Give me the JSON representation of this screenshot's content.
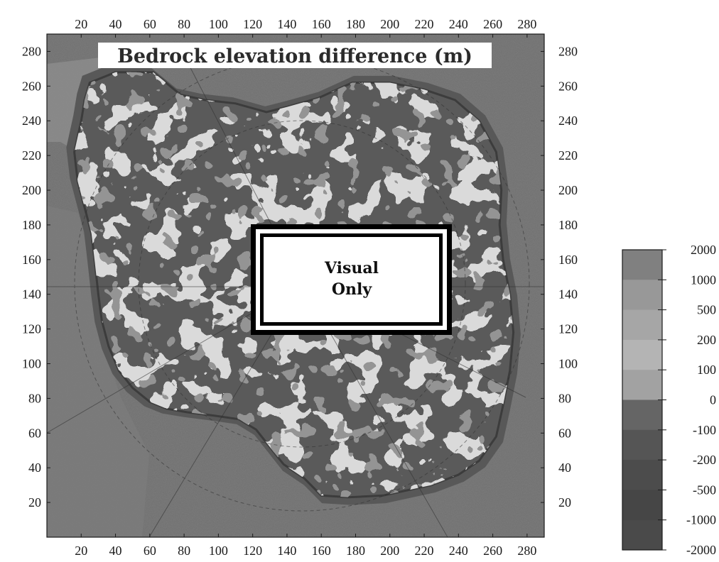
{
  "title": "Bedrock elevation difference (m)",
  "axes": {
    "x_ticks": [
      20,
      40,
      60,
      80,
      100,
      120,
      140,
      160,
      180,
      200,
      220,
      240,
      260,
      280
    ],
    "y_ticks": [
      280,
      260,
      240,
      220,
      200,
      180,
      160,
      140,
      120,
      100,
      80,
      60,
      40,
      20
    ],
    "range": [
      0,
      290
    ]
  },
  "colorbar": {
    "labels": [
      "2000",
      "1000",
      "500",
      "200",
      "100",
      "0",
      "-100",
      "-200",
      "-500",
      "-1000",
      "-2000"
    ],
    "colors": [
      "#808080",
      "#989898",
      "#a6a6a6",
      "#b4b4b4",
      "#a2a2a2",
      "#656565",
      "#555555",
      "#4c4c4c",
      "#464646",
      "#4a4a4a"
    ]
  },
  "overlay": {
    "line1": "Visual",
    "line2": "Only"
  },
  "colors": {
    "ocean": "#707070",
    "land_high": "#b2b2b2",
    "land_low": "#4a4a4a",
    "coast": "#3c3c3c"
  }
}
